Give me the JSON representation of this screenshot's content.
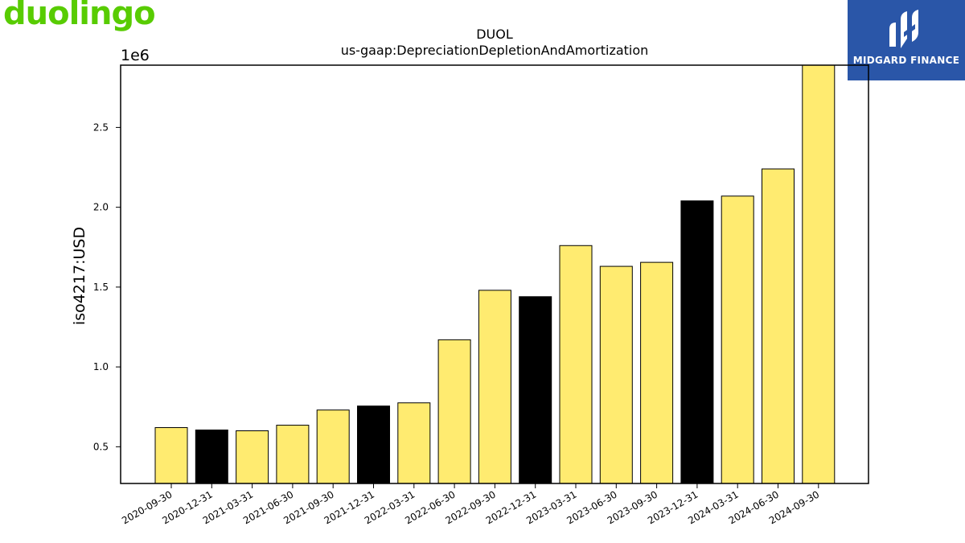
{
  "brand": {
    "name": "duolingo",
    "color": "#58cc02"
  },
  "partner": {
    "name": "MIDGARD FINANCE",
    "color": "#2a56a8"
  },
  "chart_data": {
    "type": "bar",
    "title": "DUOL",
    "subtitle": "us-gaap:DepreciationDepletionAndAmortization",
    "xlabel": "",
    "ylabel": "iso4217:USD",
    "y_multiplier": "1e6",
    "ylim": [
      0.27,
      2.89
    ],
    "yticks": [
      0.5,
      1.0,
      1.5,
      2.0,
      2.5
    ],
    "grid": false,
    "categories": [
      "2020-09-30",
      "2020-12-31",
      "2021-03-31",
      "2021-06-30",
      "2021-09-30",
      "2021-12-31",
      "2022-03-31",
      "2022-06-30",
      "2022-09-30",
      "2022-12-31",
      "2023-03-31",
      "2023-06-30",
      "2023-09-30",
      "2023-12-31",
      "2024-03-31",
      "2024-06-30",
      "2024-09-30"
    ],
    "values": [
      0.62,
      0.605,
      0.6,
      0.635,
      0.73,
      0.755,
      0.775,
      1.17,
      1.48,
      1.44,
      1.76,
      1.63,
      1.655,
      2.04,
      2.07,
      2.24,
      2.89
    ],
    "bar_colors": [
      "#ffeb70",
      "#000000",
      "#ffeb70",
      "#ffeb70",
      "#ffeb70",
      "#000000",
      "#ffeb70",
      "#ffeb70",
      "#ffeb70",
      "#000000",
      "#ffeb70",
      "#ffeb70",
      "#ffeb70",
      "#000000",
      "#ffeb70",
      "#ffeb70",
      "#ffeb70"
    ]
  }
}
